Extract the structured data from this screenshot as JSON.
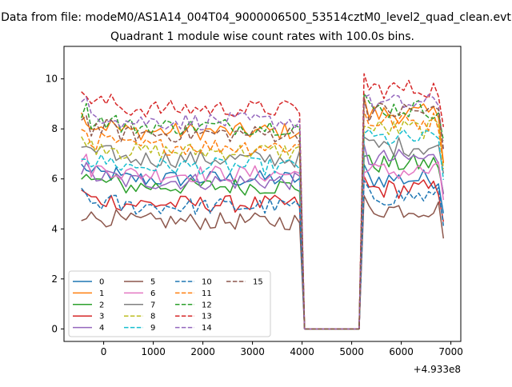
{
  "figure": {
    "suptitle": "Data from file: modeM0/AS1A14_004T04_9000006500_53514cztM0_level2_quad_clean.evt",
    "title": "Quadrant 1 module wise count rates with 100.0s bins.",
    "offset_label": "+4.933e8"
  },
  "chart_data": {
    "type": "line",
    "title": "Quadrant 1 module wise count rates with 100.0s bins.",
    "xlabel": "",
    "ylabel": "",
    "x_offset": 493300000,
    "xlim": [
      -800,
      7200
    ],
    "ylim": [
      -0.5,
      11.3
    ],
    "xticks": [
      0,
      1000,
      2000,
      3000,
      4000,
      5000,
      6000,
      7000
    ],
    "yticks": [
      0,
      2,
      4,
      6,
      8,
      10
    ],
    "grid": false,
    "legend": {
      "placement": "lower-left",
      "columns": 4
    },
    "gap": {
      "start": 4050,
      "end": 5180
    },
    "series": [
      {
        "name": "0",
        "color": "#1f77b4",
        "dash": "solid",
        "level": 6.0,
        "seg3": 6.0
      },
      {
        "name": "1",
        "color": "#ff7f0e",
        "dash": "solid",
        "level": 7.9,
        "seg3": 8.6
      },
      {
        "name": "2",
        "color": "#2ca02c",
        "dash": "solid",
        "level": 5.7,
        "seg3": 6.6
      },
      {
        "name": "3",
        "color": "#d62728",
        "dash": "solid",
        "level": 5.0,
        "seg3": 5.6
      },
      {
        "name": "4",
        "color": "#9467bd",
        "dash": "solid",
        "level": 5.9,
        "seg3": 6.8
      },
      {
        "name": "5",
        "color": "#8c564b",
        "dash": "solid",
        "level": 4.3,
        "seg3": 4.8
      },
      {
        "name": "6",
        "color": "#e377c2",
        "dash": "solid",
        "level": 6.2,
        "seg3": 6.3
      },
      {
        "name": "7",
        "color": "#7f7f7f",
        "dash": "solid",
        "level": 6.8,
        "seg3": 7.3
      },
      {
        "name": "8",
        "color": "#bcbd22",
        "dash": "dashed",
        "level": 7.1,
        "seg3": 8.0
      },
      {
        "name": "9",
        "color": "#17becf",
        "dash": "dashed",
        "level": 6.5,
        "seg3": 7.6
      },
      {
        "name": "10",
        "color": "#1f77b4",
        "dash": "dashed",
        "level": 4.9,
        "seg3": 5.3
      },
      {
        "name": "11",
        "color": "#ff7f0e",
        "dash": "dashed",
        "level": 7.3,
        "seg3": 8.3
      },
      {
        "name": "12",
        "color": "#2ca02c",
        "dash": "dashed",
        "level": 8.1,
        "seg3": 8.8
      },
      {
        "name": "13",
        "color": "#d62728",
        "dash": "dashed",
        "level": 8.8,
        "seg3": 9.6
      },
      {
        "name": "14",
        "color": "#9467bd",
        "dash": "dashed",
        "level": 8.3,
        "seg3": 9.0
      },
      {
        "name": "15",
        "color": "#8c564b",
        "dash": "dashed",
        "level": 7.8,
        "seg3": 8.7
      }
    ]
  }
}
